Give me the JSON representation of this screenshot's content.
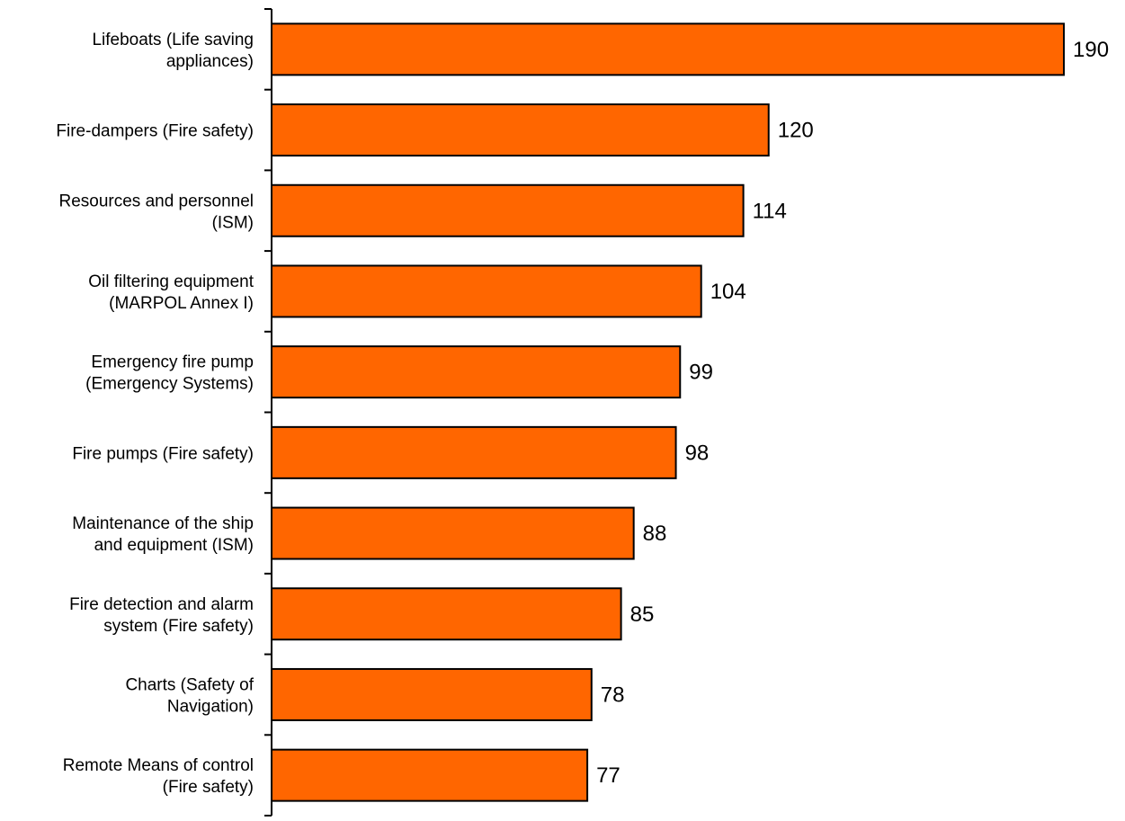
{
  "chart_data": {
    "type": "bar",
    "orientation": "horizontal",
    "categories": [
      [
        "Lifeboats (Life saving",
        "appliances)"
      ],
      [
        "Fire-dampers (Fire safety)"
      ],
      [
        "Resources and personnel",
        "(ISM)"
      ],
      [
        "Oil filtering equipment",
        "(MARPOL Annex I)"
      ],
      [
        "Emergency fire pump",
        "(Emergency Systems)"
      ],
      [
        "Fire pumps (Fire safety)"
      ],
      [
        "Maintenance of the ship",
        "and equipment (ISM)"
      ],
      [
        "Fire detection and alarm",
        "system (Fire safety)"
      ],
      [
        "Charts (Safety of",
        "Navigation)"
      ],
      [
        "Remote Means of control",
        "(Fire safety)"
      ]
    ],
    "values": [
      190,
      120,
      114,
      104,
      99,
      98,
      88,
      85,
      78,
      77
    ],
    "xlim": [
      0,
      190
    ],
    "grid": false,
    "legend": "none",
    "colors": {
      "bar": "#ff6600",
      "bar_stroke": "#000000",
      "axis": "#000000"
    }
  }
}
